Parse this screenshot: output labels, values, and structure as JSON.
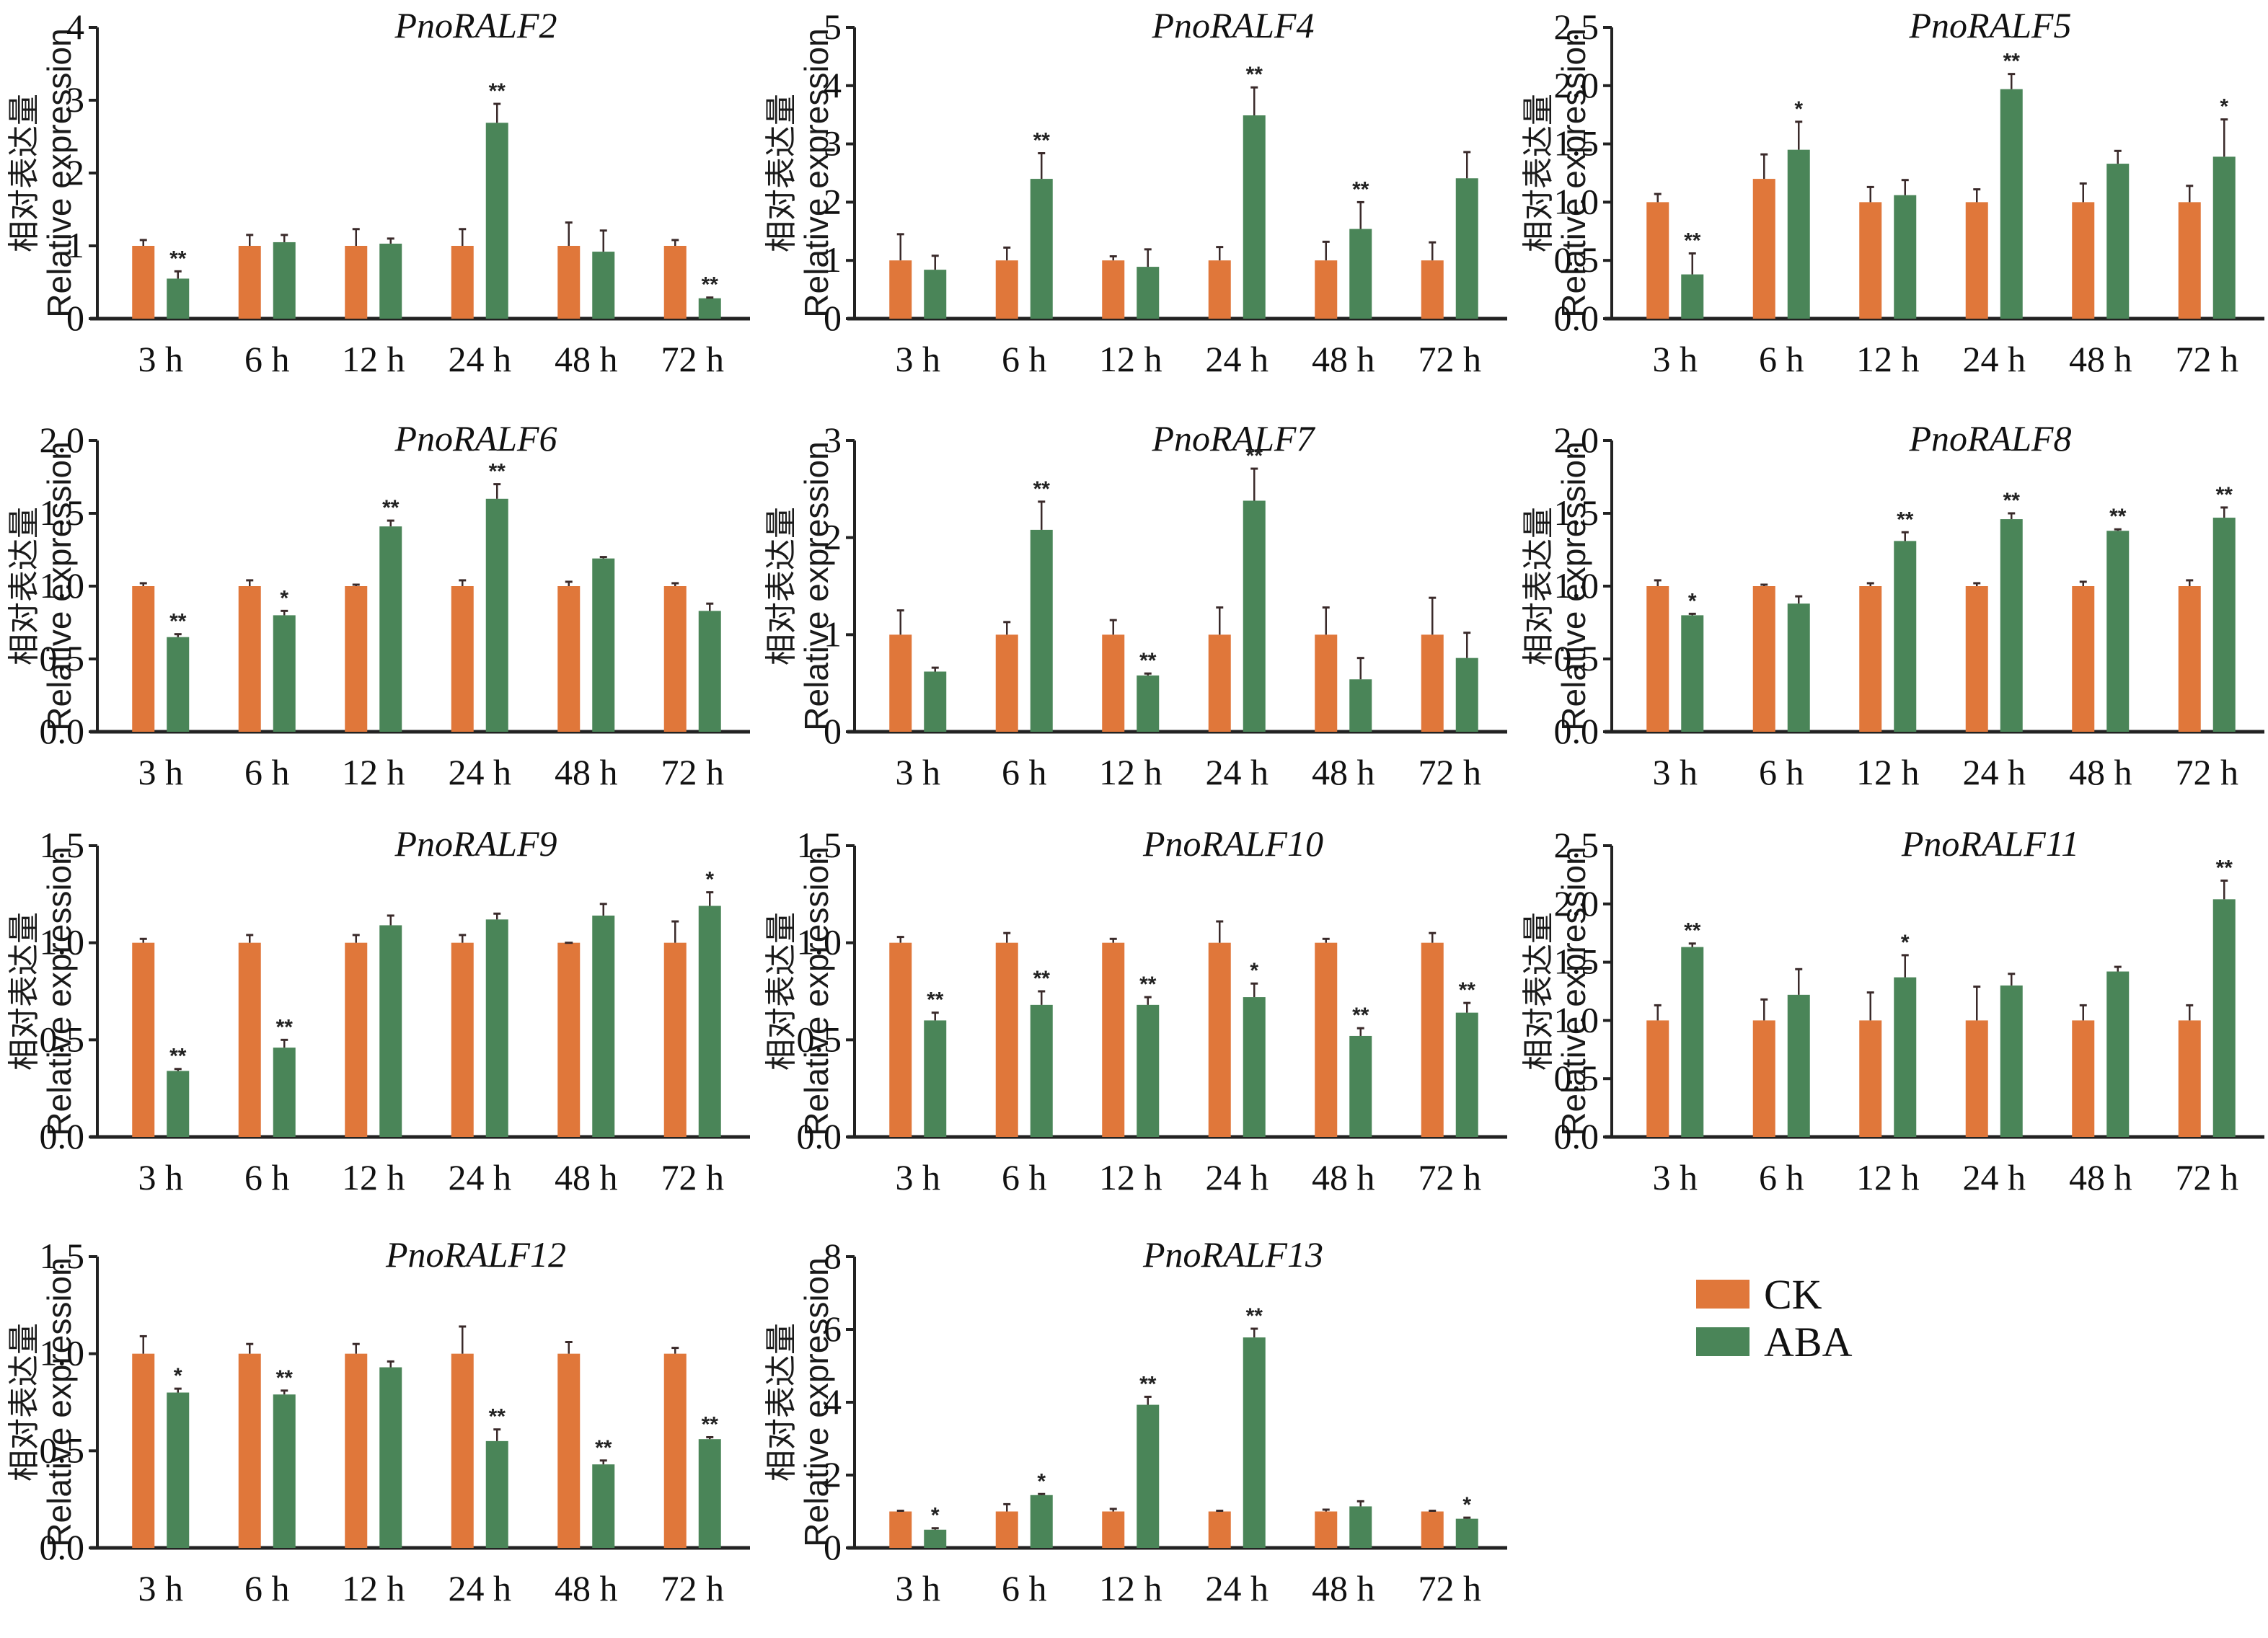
{
  "legend": {
    "items": [
      {
        "label": "CK",
        "color": "#E0773A"
      },
      {
        "label": "ABA",
        "color": "#4A8558"
      }
    ]
  },
  "y_axis_label_cn": "相对表达量",
  "y_axis_label_en": "Relative expression",
  "chart_data": [
    {
      "type": "bar",
      "title": "PnoRALF2",
      "categories": [
        "3 h",
        "6 h",
        "12 h",
        "24 h",
        "48 h",
        "72 h"
      ],
      "ylabel": "相对表达量 Relative expression",
      "ylim": [
        0,
        4
      ],
      "yticks": [
        0,
        1,
        2,
        3,
        4
      ],
      "ytick_labels": [
        "0",
        "1",
        "2",
        "3",
        "4"
      ],
      "series": [
        {
          "name": "CK",
          "values": [
            1.0,
            1.0,
            1.0,
            1.0,
            1.0,
            1.0
          ],
          "errors": [
            0.08,
            0.15,
            0.23,
            0.23,
            0.32,
            0.08
          ],
          "sig": [
            "",
            "",
            "",
            "",
            "",
            ""
          ]
        },
        {
          "name": "ABA",
          "values": [
            0.55,
            1.05,
            1.03,
            2.69,
            0.92,
            0.28
          ],
          "errors": [
            0.1,
            0.1,
            0.07,
            0.26,
            0.29,
            0.01
          ],
          "sig": [
            "**",
            "",
            "",
            "**",
            "",
            "**"
          ]
        }
      ]
    },
    {
      "type": "bar",
      "title": "PnoRALF4",
      "categories": [
        "3 h",
        "6 h",
        "12 h",
        "24 h",
        "48 h",
        "72 h"
      ],
      "ylabel": "相对表达量 Relative expression",
      "ylim": [
        0,
        5
      ],
      "yticks": [
        0,
        1,
        2,
        3,
        4,
        5
      ],
      "ytick_labels": [
        "0",
        "1",
        "2",
        "3",
        "4",
        "5"
      ],
      "series": [
        {
          "name": "CK",
          "values": [
            1.0,
            1.0,
            1.0,
            1.0,
            1.0,
            1.0
          ],
          "errors": [
            0.45,
            0.22,
            0.07,
            0.23,
            0.32,
            0.31
          ],
          "sig": [
            "",
            "",
            "",
            "",
            "",
            ""
          ]
        },
        {
          "name": "ABA",
          "values": [
            0.84,
            2.4,
            0.89,
            3.49,
            1.54,
            2.41
          ],
          "errors": [
            0.24,
            0.44,
            0.3,
            0.48,
            0.46,
            0.45
          ],
          "sig": [
            "",
            "**",
            "",
            "**",
            "**",
            ""
          ]
        }
      ]
    },
    {
      "type": "bar",
      "title": "PnoRALF5",
      "categories": [
        "3 h",
        "6 h",
        "12 h",
        "24 h",
        "48 h",
        "72 h"
      ],
      "ylabel": "相对表达量 Relative expression",
      "ylim": [
        0,
        2.5
      ],
      "yticks": [
        0,
        0.5,
        1.0,
        1.5,
        2.0,
        2.5
      ],
      "ytick_labels": [
        "0.0",
        "0.5",
        "1.0",
        "1.5",
        "2.0",
        "2.5"
      ],
      "series": [
        {
          "name": "CK",
          "values": [
            1.0,
            1.2,
            1.0,
            1.0,
            1.0,
            1.0
          ],
          "errors": [
            0.07,
            0.21,
            0.13,
            0.11,
            0.16,
            0.14
          ],
          "sig": [
            "",
            "",
            "",
            "",
            "",
            ""
          ]
        },
        {
          "name": "ABA",
          "values": [
            0.38,
            1.45,
            1.06,
            1.97,
            1.33,
            1.39
          ],
          "errors": [
            0.18,
            0.24,
            0.13,
            0.13,
            0.11,
            0.32
          ],
          "sig": [
            "**",
            "*",
            "",
            "**",
            "",
            "*"
          ]
        }
      ]
    },
    {
      "type": "bar",
      "title": "PnoRALF6",
      "categories": [
        "3 h",
        "6 h",
        "12 h",
        "24 h",
        "48 h",
        "72 h"
      ],
      "ylabel": "相对表达量 Relative expression",
      "ylim": [
        0,
        2.0
      ],
      "yticks": [
        0,
        0.5,
        1.0,
        1.5,
        2.0
      ],
      "ytick_labels": [
        "0.0",
        "0.5",
        "1.0",
        "1.5",
        "2.0"
      ],
      "series": [
        {
          "name": "CK",
          "values": [
            1.0,
            1.0,
            1.0,
            1.0,
            1.0,
            1.0
          ],
          "errors": [
            0.02,
            0.04,
            0.01,
            0.04,
            0.03,
            0.02
          ],
          "sig": [
            "",
            "",
            "",
            "",
            "",
            ""
          ]
        },
        {
          "name": "ABA",
          "values": [
            0.65,
            0.8,
            1.41,
            1.6,
            1.19,
            0.83
          ],
          "errors": [
            0.02,
            0.03,
            0.04,
            0.1,
            0.01,
            0.05
          ],
          "sig": [
            "**",
            "*",
            "**",
            "**",
            "",
            ""
          ]
        }
      ]
    },
    {
      "type": "bar",
      "title": "PnoRALF7",
      "categories": [
        "3 h",
        "6 h",
        "12 h",
        "24 h",
        "48 h",
        "72 h"
      ],
      "ylabel": "相对表达量 Relative expression",
      "ylim": [
        0,
        3
      ],
      "yticks": [
        0,
        1,
        2,
        3
      ],
      "ytick_labels": [
        "0",
        "1",
        "2",
        "3"
      ],
      "series": [
        {
          "name": "CK",
          "values": [
            1.0,
            1.0,
            1.0,
            1.0,
            1.0,
            1.0
          ],
          "errors": [
            0.25,
            0.13,
            0.15,
            0.28,
            0.28,
            0.38
          ],
          "sig": [
            "",
            "",
            "",
            "",
            "",
            ""
          ]
        },
        {
          "name": "ABA",
          "values": [
            0.62,
            2.08,
            0.58,
            2.38,
            0.54,
            0.76
          ],
          "errors": [
            0.04,
            0.29,
            0.02,
            0.33,
            0.22,
            0.26
          ],
          "sig": [
            "",
            "**",
            "**",
            "**",
            "",
            ""
          ]
        }
      ]
    },
    {
      "type": "bar",
      "title": "PnoRALF8",
      "categories": [
        "3 h",
        "6 h",
        "12 h",
        "24 h",
        "48 h",
        "72 h"
      ],
      "ylabel": "相对表达量 Relative expression",
      "ylim": [
        0,
        2.0
      ],
      "yticks": [
        0,
        0.5,
        1.0,
        1.5,
        2.0
      ],
      "ytick_labels": [
        "0.0",
        "0.5",
        "1.0",
        "1.5",
        "2.0"
      ],
      "series": [
        {
          "name": "CK",
          "values": [
            1.0,
            1.0,
            1.0,
            1.0,
            1.0,
            1.0
          ],
          "errors": [
            0.04,
            0.01,
            0.02,
            0.02,
            0.03,
            0.04
          ],
          "sig": [
            "",
            "",
            "",
            "",
            "",
            ""
          ]
        },
        {
          "name": "ABA",
          "values": [
            0.8,
            0.88,
            1.31,
            1.46,
            1.38,
            1.47
          ],
          "errors": [
            0.01,
            0.05,
            0.06,
            0.04,
            0.01,
            0.07
          ],
          "sig": [
            "*",
            "",
            "**",
            "**",
            "**",
            "**"
          ]
        }
      ]
    },
    {
      "type": "bar",
      "title": "PnoRALF9",
      "categories": [
        "3 h",
        "6 h",
        "12 h",
        "24 h",
        "48 h",
        "72 h"
      ],
      "ylabel": "相对表达量 Relative expression",
      "ylim": [
        0,
        1.5
      ],
      "yticks": [
        0,
        0.5,
        1.0,
        1.5
      ],
      "ytick_labels": [
        "0.0",
        "0.5",
        "1.0",
        "1.5"
      ],
      "series": [
        {
          "name": "CK",
          "values": [
            1.0,
            1.0,
            1.0,
            1.0,
            1.0,
            1.0
          ],
          "errors": [
            0.02,
            0.04,
            0.04,
            0.04,
            0.0,
            0.11
          ],
          "sig": [
            "",
            "",
            "",
            "",
            "",
            ""
          ]
        },
        {
          "name": "ABA",
          "values": [
            0.34,
            0.46,
            1.09,
            1.12,
            1.14,
            1.19
          ],
          "errors": [
            0.01,
            0.04,
            0.05,
            0.03,
            0.06,
            0.07
          ],
          "sig": [
            "**",
            "**",
            "",
            "",
            "",
            "*"
          ]
        }
      ]
    },
    {
      "type": "bar",
      "title": "PnoRALF10",
      "categories": [
        "3 h",
        "6 h",
        "12 h",
        "24 h",
        "48 h",
        "72 h"
      ],
      "ylabel": "相对表达量 Relative expression",
      "ylim": [
        0,
        1.5
      ],
      "yticks": [
        0,
        0.5,
        1.0,
        1.5
      ],
      "ytick_labels": [
        "0.0",
        "0.5",
        "1.0",
        "1.5"
      ],
      "series": [
        {
          "name": "CK",
          "values": [
            1.0,
            1.0,
            1.0,
            1.0,
            1.0,
            1.0
          ],
          "errors": [
            0.03,
            0.05,
            0.02,
            0.11,
            0.02,
            0.05
          ],
          "sig": [
            "",
            "",
            "",
            "",
            "",
            ""
          ]
        },
        {
          "name": "ABA",
          "values": [
            0.6,
            0.68,
            0.68,
            0.72,
            0.52,
            0.64
          ],
          "errors": [
            0.04,
            0.07,
            0.04,
            0.07,
            0.04,
            0.05
          ],
          "sig": [
            "**",
            "**",
            "**",
            "*",
            "**",
            "**"
          ]
        }
      ]
    },
    {
      "type": "bar",
      "title": "PnoRALF11",
      "categories": [
        "3 h",
        "6 h",
        "12 h",
        "24 h",
        "48 h",
        "72 h"
      ],
      "ylabel": "相对表达量 Relative expression",
      "ylim": [
        0,
        2.5
      ],
      "yticks": [
        0,
        0.5,
        1.0,
        1.5,
        2.0,
        2.5
      ],
      "ytick_labels": [
        "0.0",
        "0.5",
        "1.0",
        "1.5",
        "2.0",
        "2.5"
      ],
      "series": [
        {
          "name": "CK",
          "values": [
            1.0,
            1.0,
            1.0,
            1.0,
            1.0,
            1.0
          ],
          "errors": [
            0.13,
            0.18,
            0.24,
            0.29,
            0.13,
            0.13
          ],
          "sig": [
            "",
            "",
            "",
            "",
            "",
            ""
          ]
        },
        {
          "name": "ABA",
          "values": [
            1.63,
            1.22,
            1.37,
            1.3,
            1.42,
            2.04
          ],
          "errors": [
            0.03,
            0.22,
            0.19,
            0.1,
            0.04,
            0.16
          ],
          "sig": [
            "**",
            "",
            "*",
            "",
            "",
            "**"
          ]
        }
      ]
    },
    {
      "type": "bar",
      "title": "PnoRALF12",
      "categories": [
        "3 h",
        "6 h",
        "12 h",
        "24 h",
        "48 h",
        "72 h"
      ],
      "ylabel": "相对表达量 Relative expression",
      "ylim": [
        0,
        1.5
      ],
      "yticks": [
        0,
        0.5,
        1.0,
        1.5
      ],
      "ytick_labels": [
        "0.0",
        "0.5",
        "1.0",
        "1.5"
      ],
      "series": [
        {
          "name": "CK",
          "values": [
            1.0,
            1.0,
            1.0,
            1.0,
            1.0,
            1.0
          ],
          "errors": [
            0.09,
            0.05,
            0.05,
            0.14,
            0.06,
            0.03
          ],
          "sig": [
            "",
            "",
            "",
            "",
            "",
            ""
          ]
        },
        {
          "name": "ABA",
          "values": [
            0.8,
            0.79,
            0.93,
            0.55,
            0.43,
            0.56
          ],
          "errors": [
            0.02,
            0.02,
            0.03,
            0.06,
            0.02,
            0.01
          ],
          "sig": [
            "*",
            "**",
            "",
            "**",
            "**",
            "**"
          ]
        }
      ]
    },
    {
      "type": "bar",
      "title": "PnoRALF13",
      "categories": [
        "3 h",
        "6 h",
        "12 h",
        "24 h",
        "48 h",
        "72 h"
      ],
      "ylabel": "相对表达量 Relative expression",
      "ylim": [
        0,
        8
      ],
      "yticks": [
        0,
        2,
        4,
        6,
        8
      ],
      "ytick_labels": [
        "0",
        "2",
        "4",
        "6",
        "8"
      ],
      "series": [
        {
          "name": "CK",
          "values": [
            1.0,
            1.0,
            1.0,
            1.0,
            1.0,
            1.0
          ],
          "errors": [
            0.02,
            0.2,
            0.07,
            0.02,
            0.05,
            0.02
          ],
          "sig": [
            "",
            "",
            "",
            "",
            "",
            ""
          ]
        },
        {
          "name": "ABA",
          "values": [
            0.5,
            1.45,
            3.93,
            5.78,
            1.14,
            0.8
          ],
          "errors": [
            0.04,
            0.03,
            0.22,
            0.24,
            0.14,
            0.03
          ],
          "sig": [
            "*",
            "*",
            "**",
            "**",
            "",
            "*"
          ]
        }
      ]
    }
  ]
}
